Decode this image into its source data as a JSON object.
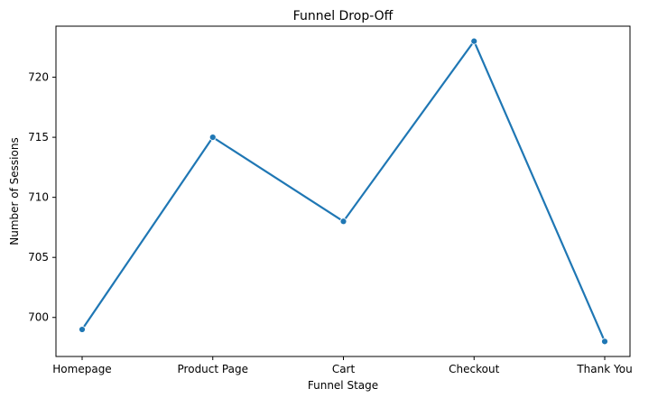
{
  "chart_data": {
    "type": "line",
    "title": "Funnel Drop-Off",
    "xlabel": "Funnel Stage",
    "ylabel": "Number of Sessions",
    "categories": [
      "Homepage",
      "Product Page",
      "Cart",
      "Checkout",
      "Thank You"
    ],
    "series": [
      {
        "values": [
          699,
          715,
          708,
          723,
          698
        ],
        "color": "#1f77b4",
        "marker": "circle"
      }
    ],
    "ylim": [
      696.75,
      724.25
    ],
    "yticks": [
      700,
      705,
      710,
      715,
      720
    ],
    "grid": false,
    "legend": "none"
  }
}
